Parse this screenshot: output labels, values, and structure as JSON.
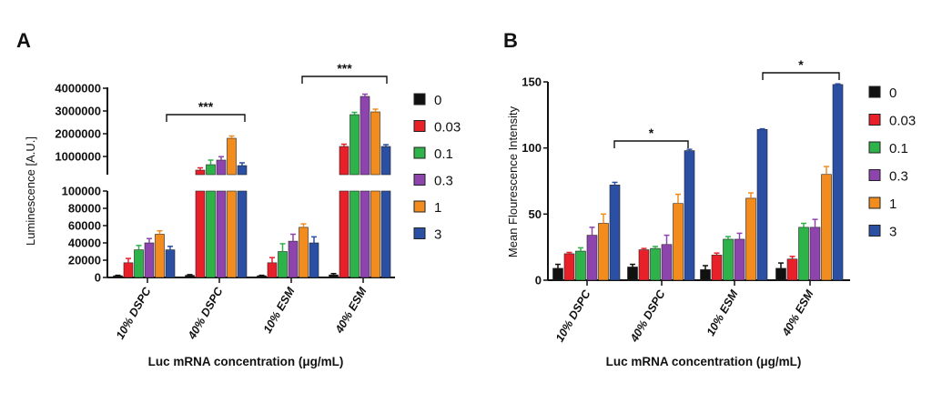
{
  "chart_data": [
    {
      "panel": "A",
      "type": "bar",
      "ylabel": "Luminescence [A.U.]",
      "xlabel": "Luc mRNA concentration (μg/mL)",
      "categories": [
        "10% DSPC",
        "40% DSPC",
        "10% ESM",
        "40% ESM"
      ],
      "y_axis": "broken",
      "ylim_lower": [
        0,
        100000
      ],
      "yticks_lower": [
        "0",
        "20000",
        "40000",
        "60000",
        "80000",
        "100000"
      ],
      "ylim_upper": [
        200000,
        4000000
      ],
      "yticks_upper": [
        "1000000",
        "2000000",
        "3000000",
        "4000000"
      ],
      "legend_title": "",
      "legend_position": "right",
      "series": [
        {
          "name": "0",
          "color": "#111111",
          "values": [
            2000,
            2500,
            2000,
            3000
          ],
          "errors": [
            500,
            800,
            500,
            1500
          ]
        },
        {
          "name": "0.03",
          "color": "#e8202a",
          "values": [
            17000,
            400000,
            17000,
            1440000
          ],
          "errors": [
            5000,
            100000,
            6000,
            100000
          ]
        },
        {
          "name": "0.1",
          "color": "#2db34a",
          "values": [
            32000,
            640000,
            30000,
            2840000
          ],
          "errors": [
            5000,
            200000,
            9000,
            100000
          ]
        },
        {
          "name": "0.3",
          "color": "#8e44ad",
          "values": [
            40000,
            840000,
            42000,
            3640000
          ],
          "errors": [
            5000,
            150000,
            8000,
            100000
          ]
        },
        {
          "name": "1",
          "color": "#f28c1e",
          "values": [
            50000,
            1800000,
            58000,
            2960000
          ],
          "errors": [
            4000,
            100000,
            4000,
            120000
          ]
        },
        {
          "name": "3",
          "color": "#2a4fa3",
          "values": [
            32000,
            600000,
            40000,
            1440000
          ],
          "errors": [
            4000,
            120000,
            7000,
            80000
          ]
        }
      ],
      "annotations": [
        {
          "text": "***",
          "from": "10% DSPC / 3",
          "to": "40% DSPC / 3"
        },
        {
          "text": "***",
          "from": "10% ESM / 3",
          "to": "40% ESM / 3"
        }
      ]
    },
    {
      "panel": "B",
      "type": "bar",
      "ylabel": "Mean Flourescence Intensity",
      "xlabel": "Luc mRNA concentration (μg/mL)",
      "categories": [
        "10% DSPC",
        "40% DSPC",
        "10% ESM",
        "40% ESM"
      ],
      "ylim": [
        0,
        150
      ],
      "yticks": [
        "0",
        "50",
        "100",
        "150"
      ],
      "legend_position": "right",
      "series": [
        {
          "name": "0",
          "color": "#111111",
          "values": [
            9,
            10,
            8,
            9
          ],
          "errors": [
            3,
            2,
            3,
            4
          ]
        },
        {
          "name": "0.03",
          "color": "#e8202a",
          "values": [
            20,
            23,
            19,
            16
          ],
          "errors": [
            1,
            1,
            1.5,
            2
          ]
        },
        {
          "name": "0.1",
          "color": "#2db34a",
          "values": [
            22,
            24,
            31,
            40
          ],
          "errors": [
            2.5,
            1.5,
            2,
            3
          ]
        },
        {
          "name": "0.3",
          "color": "#8e44ad",
          "values": [
            34,
            27,
            31,
            40
          ],
          "errors": [
            6,
            7,
            4.5,
            6
          ]
        },
        {
          "name": "1",
          "color": "#f28c1e",
          "values": [
            43,
            58,
            62,
            80
          ],
          "errors": [
            7,
            7,
            4,
            6
          ]
        },
        {
          "name": "3",
          "color": "#2a4fa3",
          "values": [
            72,
            98,
            114,
            148
          ],
          "errors": [
            2,
            1,
            0.5,
            0.5
          ]
        }
      ],
      "annotations": [
        {
          "text": "*",
          "from": "10% DSPC / 3",
          "to": "40% DSPC / 3"
        },
        {
          "text": "*",
          "from": "10% ESM / 3",
          "to": "40% ESM / 3"
        }
      ]
    }
  ]
}
